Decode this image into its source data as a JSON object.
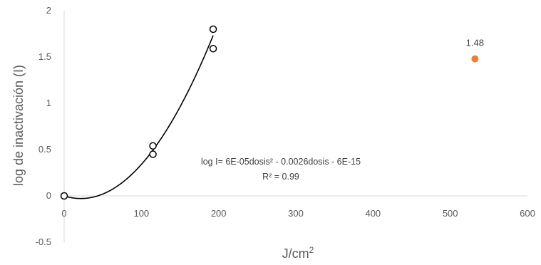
{
  "chart_data": {
    "type": "scatter",
    "title": "",
    "xlabel": "J/cm",
    "xlabel_superscript": "2",
    "ylabel": "log de inactivación (I)",
    "xlim": [
      0,
      600
    ],
    "ylim": [
      -0.5,
      2
    ],
    "x_ticks": [
      "0",
      "100",
      "200",
      "300",
      "400",
      "500",
      "600"
    ],
    "y_ticks": [
      "-0.5",
      "0",
      "0.5",
      "1",
      "1.5",
      "2"
    ],
    "grid": false,
    "legend": "none",
    "series": [
      {
        "marker": "open-circle",
        "color": "#000000",
        "points": [
          {
            "x": 0,
            "y": 0
          },
          {
            "x": 115,
            "y": 0.54
          },
          {
            "x": 115,
            "y": 0.45
          },
          {
            "x": 193,
            "y": 1.8
          },
          {
            "x": 193,
            "y": 1.59
          }
        ]
      },
      {
        "marker": "filled-circle",
        "color": "#ED7D31",
        "points": [
          {
            "x": 532,
            "y": 1.48,
            "label": "1.48"
          }
        ]
      }
    ],
    "trendline": {
      "type": "polynomial",
      "color": "#000000",
      "a": 6e-05,
      "b": -0.0026,
      "c": 0,
      "x_range": [
        0,
        193
      ],
      "equation_line1": "log I= 6E-05dosis² - 0.0026dosis - 6E-15",
      "equation_line2": "R² = 0.99"
    },
    "axis_color": "#D9D9D9"
  }
}
